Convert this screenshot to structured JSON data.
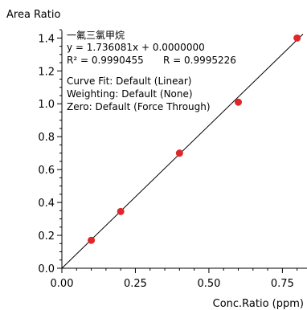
{
  "chart_data": {
    "type": "scatter",
    "ylabel": "Area Ratio",
    "xlabel": "Conc.Ratio (ppm)",
    "xlim": [
      0,
      0.82
    ],
    "ylim": [
      0,
      1.47
    ],
    "x_ticks": [
      "0.00",
      "0.25",
      "0.50",
      "0.75"
    ],
    "y_ticks": [
      "0.0",
      "0.2",
      "0.4",
      "0.6",
      "0.8",
      "1.0",
      "1.2",
      "1.4"
    ],
    "points": [
      {
        "x": 0.1,
        "y": 0.17
      },
      {
        "x": 0.2,
        "y": 0.345
      },
      {
        "x": 0.4,
        "y": 0.7
      },
      {
        "x": 0.6,
        "y": 1.01
      },
      {
        "x": 0.8,
        "y": 1.4
      }
    ],
    "fit_line": {
      "slope": 1.736081,
      "intercept": 0.0
    },
    "annotations": {
      "compound": "一氟三氯甲烷",
      "equation": "y = 1.736081x + 0.0000000",
      "r2": "R² = 0.9990455",
      "r": "R = 0.9995226",
      "curve_fit": "Curve Fit: Default (Linear)",
      "weighting": "Weighting: Default (None)",
      "zero": "Zero: Default (Force Through)"
    },
    "point_color": "#e0262b",
    "line_color": "#000000",
    "grid": false,
    "legend": "none"
  }
}
